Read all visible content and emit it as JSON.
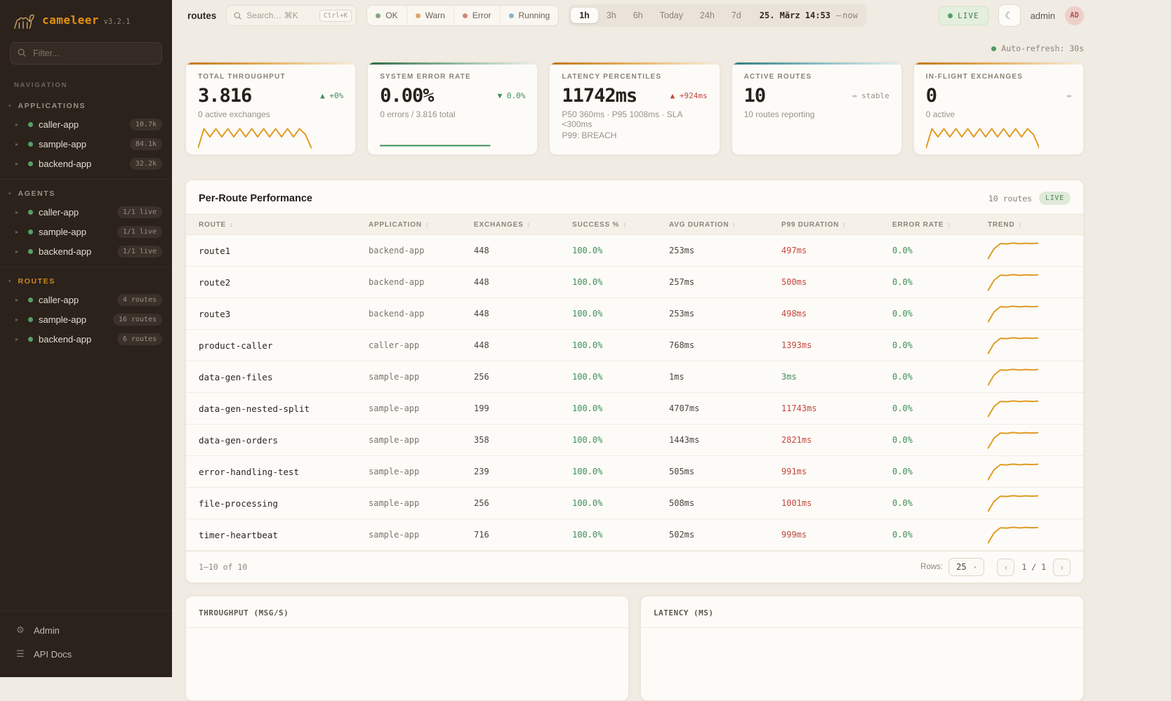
{
  "colors": {
    "orange": "#e09b25",
    "green": "#3f8e57",
    "red": "#c2473d",
    "gray": "#9a9186"
  },
  "sidebar": {
    "logo_text": "cameleer",
    "version": "v3.2.1",
    "filter_placeholder": "Filter...",
    "nav_label": "NAVIGATION",
    "groups": [
      {
        "label": "APPLICATIONS",
        "items": [
          {
            "label": "caller-app",
            "badge": "10.7k"
          },
          {
            "label": "sample-app",
            "badge": "84.1k"
          },
          {
            "label": "backend-app",
            "badge": "32.2k"
          }
        ]
      },
      {
        "label": "AGENTS",
        "items": [
          {
            "label": "caller-app",
            "badge": "1/1 live"
          },
          {
            "label": "sample-app",
            "badge": "1/1 live"
          },
          {
            "label": "backend-app",
            "badge": "1/1 live"
          }
        ]
      },
      {
        "label": "ROUTES",
        "items": [
          {
            "label": "caller-app",
            "badge": "4 routes"
          },
          {
            "label": "sample-app",
            "badge": "16 routes"
          },
          {
            "label": "backend-app",
            "badge": "6 routes"
          }
        ]
      }
    ],
    "footer_items": [
      {
        "label": "Admin"
      },
      {
        "label": "API Docs"
      }
    ]
  },
  "header": {
    "breadcrumb": "routes",
    "search_placeholder": "Search… ⌘K",
    "search_shortcut": "Ctrl+K",
    "status_filters": [
      {
        "label": "OK",
        "color": "#84a87c"
      },
      {
        "label": "Warn",
        "color": "#d9a86a"
      },
      {
        "label": "Error",
        "color": "#d4837a"
      },
      {
        "label": "Running",
        "color": "#8fb3c6"
      }
    ],
    "time_ranges": [
      "1h",
      "3h",
      "6h",
      "Today",
      "24h",
      "7d"
    ],
    "active_range": "1h",
    "time_from": "25. März 14:53",
    "time_separator": "–",
    "time_to": "now",
    "live_label": "LIVE",
    "user_name": "admin",
    "user_initials": "AD"
  },
  "auto_refresh": "Auto-refresh: 30s",
  "kpis": [
    {
      "title": "TOTAL THROUGHPUT",
      "value": "3.816",
      "delta": "▲ +0%",
      "sub": "0 active exchanges"
    },
    {
      "title": "SYSTEM ERROR RATE",
      "value": "0.00%",
      "delta": "▼ 0.0%",
      "sub": "0 errors / 3.816 total"
    },
    {
      "title": "LATENCY PERCENTILES",
      "value": "11742ms",
      "delta": "▲ +924ms",
      "sub": "P50 360ms · P95 1008ms · SLA <300ms",
      "sub2": "P99: BREACH"
    },
    {
      "title": "ACTIVE ROUTES",
      "value": "10",
      "delta": "⇔ stable",
      "sub": "10 routes reporting"
    },
    {
      "title": "IN-FLIGHT EXCHANGES",
      "value": "0",
      "delta": "⇔",
      "sub": "0 active"
    }
  ],
  "table": {
    "title": "Per-Route Performance",
    "routes_count": "10 routes",
    "live_label": "LIVE",
    "columns": [
      "ROUTE",
      "APPLICATION",
      "EXCHANGES",
      "SUCCESS %",
      "AVG DURATION",
      "P99 DURATION",
      "ERROR RATE",
      "TREND"
    ],
    "rows": [
      {
        "route": "route1",
        "application": "backend-app",
        "exchanges": "448",
        "success": "100.0%",
        "avg": "253ms",
        "p99": "497ms",
        "error": "0.0%"
      },
      {
        "route": "route2",
        "application": "backend-app",
        "exchanges": "448",
        "success": "100.0%",
        "avg": "257ms",
        "p99": "500ms",
        "error": "0.0%"
      },
      {
        "route": "route3",
        "application": "backend-app",
        "exchanges": "448",
        "success": "100.0%",
        "avg": "253ms",
        "p99": "498ms",
        "error": "0.0%"
      },
      {
        "route": "product-caller",
        "application": "caller-app",
        "exchanges": "448",
        "success": "100.0%",
        "avg": "768ms",
        "p99": "1393ms",
        "error": "0.0%"
      },
      {
        "route": "data-gen-files",
        "application": "sample-app",
        "exchanges": "256",
        "success": "100.0%",
        "avg": "1ms",
        "p99": "3ms",
        "error": "0.0%"
      },
      {
        "route": "data-gen-nested-split",
        "application": "sample-app",
        "exchanges": "199",
        "success": "100.0%",
        "avg": "4707ms",
        "p99": "11743ms",
        "error": "0.0%"
      },
      {
        "route": "data-gen-orders",
        "application": "sample-app",
        "exchanges": "358",
        "success": "100.0%",
        "avg": "1443ms",
        "p99": "2821ms",
        "error": "0.0%"
      },
      {
        "route": "error-handling-test",
        "application": "sample-app",
        "exchanges": "239",
        "success": "100.0%",
        "avg": "505ms",
        "p99": "991ms",
        "error": "0.0%"
      },
      {
        "route": "file-processing",
        "application": "sample-app",
        "exchanges": "256",
        "success": "100.0%",
        "avg": "508ms",
        "p99": "1001ms",
        "error": "0.0%"
      },
      {
        "route": "timer-heartbeat",
        "application": "sample-app",
        "exchanges": "716",
        "success": "100.0%",
        "avg": "502ms",
        "p99": "999ms",
        "error": "0.0%"
      }
    ],
    "footer": {
      "range": "1–10 of 10",
      "rows_label": "Rows:",
      "rows_value": "25",
      "prev": "‹",
      "page": "1 / 1",
      "next": "›"
    }
  },
  "panels": [
    {
      "title": "THROUGHPUT (MSG/S)"
    },
    {
      "title": "LATENCY (MS)"
    }
  ],
  "sparklines": {
    "zigzag": [
      98,
      16,
      50,
      16,
      50,
      16,
      50,
      16,
      50,
      16,
      50,
      16,
      50,
      16,
      50,
      16,
      50,
      16,
      40,
      98
    ],
    "flat": [
      62,
      62
    ],
    "row_trend": [
      98,
      40,
      12,
      14,
      9,
      13,
      10,
      12,
      10
    ]
  }
}
